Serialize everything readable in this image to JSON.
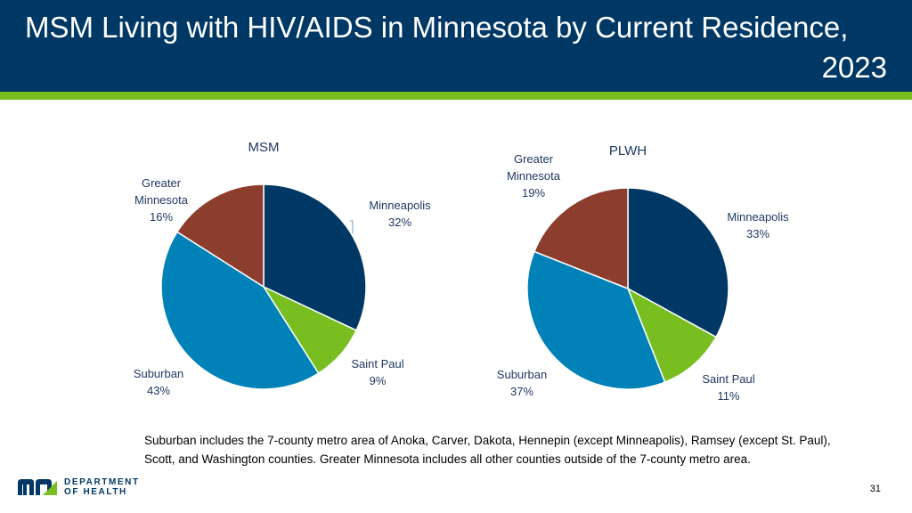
{
  "slide": {
    "title_line1": "MSM Living with HIV/AIDS in Minnesota by Current Residence,",
    "title_line2": "2023",
    "note": "Suburban includes the 7-county metro area of Anoka, Carver, Dakota, Hennepin (except Minneapolis), Ramsey (except St. Paul), Scott, and Washington counties. Greater Minnesota includes all other counties outside of the 7-county metro area.",
    "page_number": "31",
    "logo_line1": "DEPARTMENT",
    "logo_line2": "OF HEALTH"
  },
  "colors": {
    "header_bg": "#003865",
    "accent_bar": "#78be21",
    "Minneapolis": "#003865",
    "Saint Paul": "#78be21",
    "Suburban": "#0081b8",
    "Greater Minnesota": "#8c3d2d"
  },
  "chart_data": [
    {
      "type": "pie",
      "title": "MSM",
      "categories": [
        "Minneapolis",
        "Saint Paul",
        "Suburban",
        "Greater Minnesota"
      ],
      "values": [
        32,
        9,
        43,
        16
      ],
      "labels": [
        "Minneapolis 32%",
        "Saint Paul 9%",
        "Suburban 43%",
        "Greater Minnesota 16%"
      ]
    },
    {
      "type": "pie",
      "title": "PLWH",
      "categories": [
        "Minneapolis",
        "Saint Paul",
        "Suburban",
        "Greater Minnesota"
      ],
      "values": [
        33,
        11,
        37,
        19
      ],
      "labels": [
        "Minneapolis 33%",
        "Saint Paul 11%",
        "Suburban 37%",
        "Greater Minnesota 19%"
      ]
    }
  ]
}
